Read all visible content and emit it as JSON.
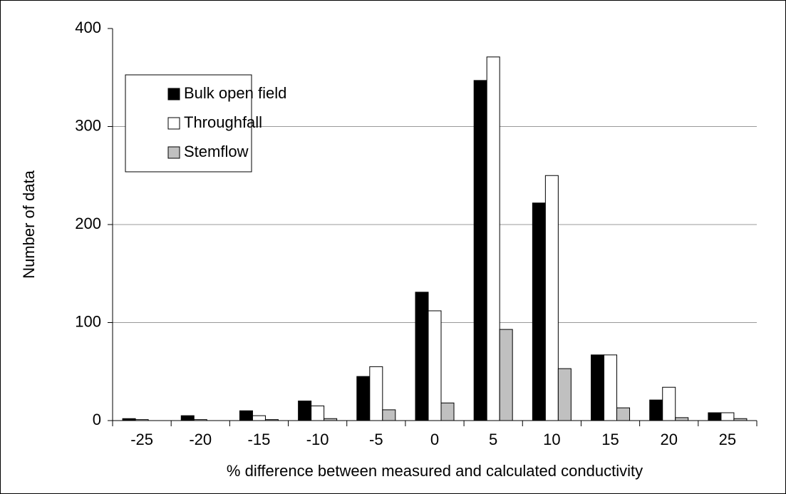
{
  "chart_data": {
    "type": "bar",
    "xlabel": "% difference between measured and calculated conductivity",
    "ylabel": "Number of data",
    "categories": [
      "-25",
      "-20",
      "-15",
      "-10",
      "-5",
      "0",
      "5",
      "10",
      "15",
      "20",
      "25"
    ],
    "series": [
      {
        "name": "Bulk open field",
        "color": "#000000",
        "values": [
          2,
          5,
          10,
          20,
          45,
          131,
          347,
          222,
          67,
          21,
          8
        ]
      },
      {
        "name": "Throughfall",
        "color": "#ffffff",
        "values": [
          1,
          1,
          5,
          15,
          55,
          112,
          371,
          250,
          67,
          34,
          8
        ]
      },
      {
        "name": "Stemflow",
        "color": "#c0c0c0",
        "values": [
          0,
          0,
          1,
          2,
          11,
          18,
          93,
          53,
          13,
          3,
          2
        ]
      }
    ],
    "ylim": [
      0,
      400
    ],
    "yticks": [
      0,
      100,
      200,
      300,
      400
    ],
    "grid": true,
    "legend": "upper left"
  }
}
